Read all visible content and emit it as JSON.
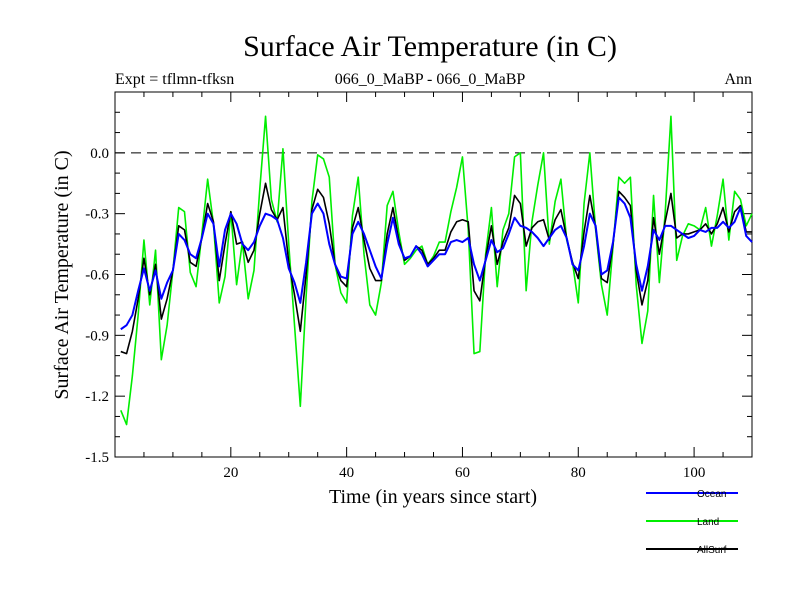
{
  "chart_data": {
    "type": "line",
    "title": "Surface Air Temperature (in C)",
    "subtitle_left": "Expt = tflmn-tfksn",
    "subtitle_center": "066_0_MaBP - 066_0_MaBP",
    "subtitle_right": "Ann",
    "xlabel": "Time (in years since start)",
    "ylabel": "Surface Air Temperature (in C)",
    "xlim": [
      0,
      110
    ],
    "ylim": [
      -1.5,
      0.3
    ],
    "x_ticks": [
      20,
      40,
      60,
      80,
      100
    ],
    "y_ticks": [
      -1.5,
      -1.2,
      -0.9,
      -0.6,
      -0.3,
      0.0
    ],
    "y_tick_labels": [
      "-1.5",
      "-1.2",
      "-0.9",
      "-0.6",
      "-0.3",
      "0.0"
    ],
    "reference_line": 0.0,
    "x": [
      1,
      2,
      3,
      4,
      5,
      6,
      7,
      8,
      9,
      10,
      11,
      12,
      13,
      14,
      15,
      16,
      17,
      18,
      19,
      20,
      21,
      22,
      23,
      24,
      25,
      26,
      27,
      28,
      29,
      30,
      31,
      32,
      33,
      34,
      35,
      36,
      37,
      38,
      39,
      40,
      41,
      42,
      43,
      44,
      45,
      46,
      47,
      48,
      49,
      50,
      51,
      52,
      53,
      54,
      55,
      56,
      57,
      58,
      59,
      60,
      61,
      62,
      63,
      64,
      65,
      66,
      67,
      68,
      69,
      70,
      71,
      72,
      73,
      74,
      75,
      76,
      77,
      78,
      79,
      80,
      81,
      82,
      83,
      84,
      85,
      86,
      87,
      88,
      89,
      90,
      91,
      92,
      93,
      94,
      95,
      96,
      97,
      98,
      99,
      100,
      101,
      102,
      103,
      104,
      105,
      106,
      107,
      108,
      109,
      110
    ],
    "series": [
      {
        "name": "Ocean",
        "color": "#0000ff",
        "values": [
          -0.87,
          -0.85,
          -0.8,
          -0.68,
          -0.57,
          -0.68,
          -0.58,
          -0.72,
          -0.64,
          -0.58,
          -0.4,
          -0.43,
          -0.5,
          -0.52,
          -0.42,
          -0.3,
          -0.35,
          -0.56,
          -0.38,
          -0.3,
          -0.35,
          -0.45,
          -0.48,
          -0.44,
          -0.36,
          -0.3,
          -0.31,
          -0.33,
          -0.42,
          -0.57,
          -0.64,
          -0.74,
          -0.54,
          -0.3,
          -0.25,
          -0.3,
          -0.45,
          -0.55,
          -0.61,
          -0.62,
          -0.4,
          -0.34,
          -0.4,
          -0.48,
          -0.56,
          -0.62,
          -0.45,
          -0.32,
          -0.45,
          -0.52,
          -0.51,
          -0.46,
          -0.5,
          -0.56,
          -0.53,
          -0.5,
          -0.5,
          -0.44,
          -0.43,
          -0.44,
          -0.42,
          -0.55,
          -0.63,
          -0.53,
          -0.43,
          -0.49,
          -0.47,
          -0.4,
          -0.32,
          -0.36,
          -0.37,
          -0.39,
          -0.42,
          -0.46,
          -0.42,
          -0.38,
          -0.36,
          -0.42,
          -0.55,
          -0.58,
          -0.46,
          -0.3,
          -0.36,
          -0.6,
          -0.58,
          -0.44,
          -0.22,
          -0.25,
          -0.32,
          -0.55,
          -0.68,
          -0.56,
          -0.38,
          -0.43,
          -0.36,
          -0.36,
          -0.38,
          -0.4,
          -0.42,
          -0.41,
          -0.38,
          -0.39,
          -0.37,
          -0.37,
          -0.34,
          -0.37,
          -0.34,
          -0.27,
          -0.41,
          -0.44
        ]
      },
      {
        "name": "Land",
        "color": "#00ee00",
        "values": [
          -1.27,
          -1.34,
          -1.1,
          -0.8,
          -0.43,
          -0.75,
          -0.48,
          -1.02,
          -0.85,
          -0.58,
          -0.27,
          -0.29,
          -0.59,
          -0.66,
          -0.4,
          -0.13,
          -0.35,
          -0.74,
          -0.61,
          -0.29,
          -0.65,
          -0.44,
          -0.72,
          -0.58,
          -0.18,
          0.18,
          -0.23,
          -0.34,
          0.02,
          -0.45,
          -0.85,
          -1.25,
          -0.71,
          -0.24,
          -0.01,
          -0.03,
          -0.12,
          -0.55,
          -0.69,
          -0.74,
          -0.31,
          -0.12,
          -0.5,
          -0.75,
          -0.8,
          -0.64,
          -0.26,
          -0.19,
          -0.39,
          -0.55,
          -0.52,
          -0.48,
          -0.46,
          -0.55,
          -0.51,
          -0.44,
          -0.44,
          -0.29,
          -0.17,
          -0.02,
          -0.38,
          -0.99,
          -0.98,
          -0.5,
          -0.27,
          -0.66,
          -0.38,
          -0.3,
          -0.02,
          0.0,
          -0.68,
          -0.34,
          -0.16,
          0.0,
          -0.45,
          -0.24,
          -0.13,
          -0.43,
          -0.54,
          -0.74,
          -0.25,
          0.0,
          -0.38,
          -0.65,
          -0.8,
          -0.46,
          -0.12,
          -0.15,
          -0.12,
          -0.65,
          -0.94,
          -0.78,
          -0.21,
          -0.64,
          -0.3,
          0.18,
          -0.53,
          -0.41,
          -0.35,
          -0.36,
          -0.38,
          -0.27,
          -0.46,
          -0.31,
          -0.13,
          -0.43,
          -0.19,
          -0.23,
          -0.36,
          -0.3
        ]
      },
      {
        "name": "AllSurf",
        "color": "#000000",
        "values": [
          -0.98,
          -0.99,
          -0.88,
          -0.72,
          -0.52,
          -0.7,
          -0.55,
          -0.82,
          -0.72,
          -0.58,
          -0.36,
          -0.38,
          -0.54,
          -0.56,
          -0.42,
          -0.25,
          -0.34,
          -0.63,
          -0.45,
          -0.29,
          -0.45,
          -0.44,
          -0.54,
          -0.48,
          -0.3,
          -0.15,
          -0.28,
          -0.33,
          -0.27,
          -0.54,
          -0.7,
          -0.88,
          -0.6,
          -0.28,
          -0.18,
          -0.22,
          -0.35,
          -0.55,
          -0.63,
          -0.66,
          -0.37,
          -0.27,
          -0.43,
          -0.57,
          -0.63,
          -0.63,
          -0.4,
          -0.27,
          -0.43,
          -0.53,
          -0.51,
          -0.46,
          -0.48,
          -0.55,
          -0.52,
          -0.48,
          -0.48,
          -0.39,
          -0.34,
          -0.33,
          -0.34,
          -0.68,
          -0.73,
          -0.52,
          -0.36,
          -0.55,
          -0.44,
          -0.37,
          -0.21,
          -0.25,
          -0.46,
          -0.37,
          -0.34,
          -0.33,
          -0.43,
          -0.33,
          -0.28,
          -0.42,
          -0.54,
          -0.62,
          -0.39,
          -0.21,
          -0.37,
          -0.62,
          -0.64,
          -0.45,
          -0.19,
          -0.22,
          -0.26,
          -0.58,
          -0.75,
          -0.63,
          -0.32,
          -0.5,
          -0.34,
          -0.2,
          -0.42,
          -0.4,
          -0.4,
          -0.39,
          -0.38,
          -0.35,
          -0.4,
          -0.35,
          -0.27,
          -0.39,
          -0.29,
          -0.26,
          -0.39,
          -0.39
        ]
      }
    ],
    "legend_position": "bottom-right"
  }
}
